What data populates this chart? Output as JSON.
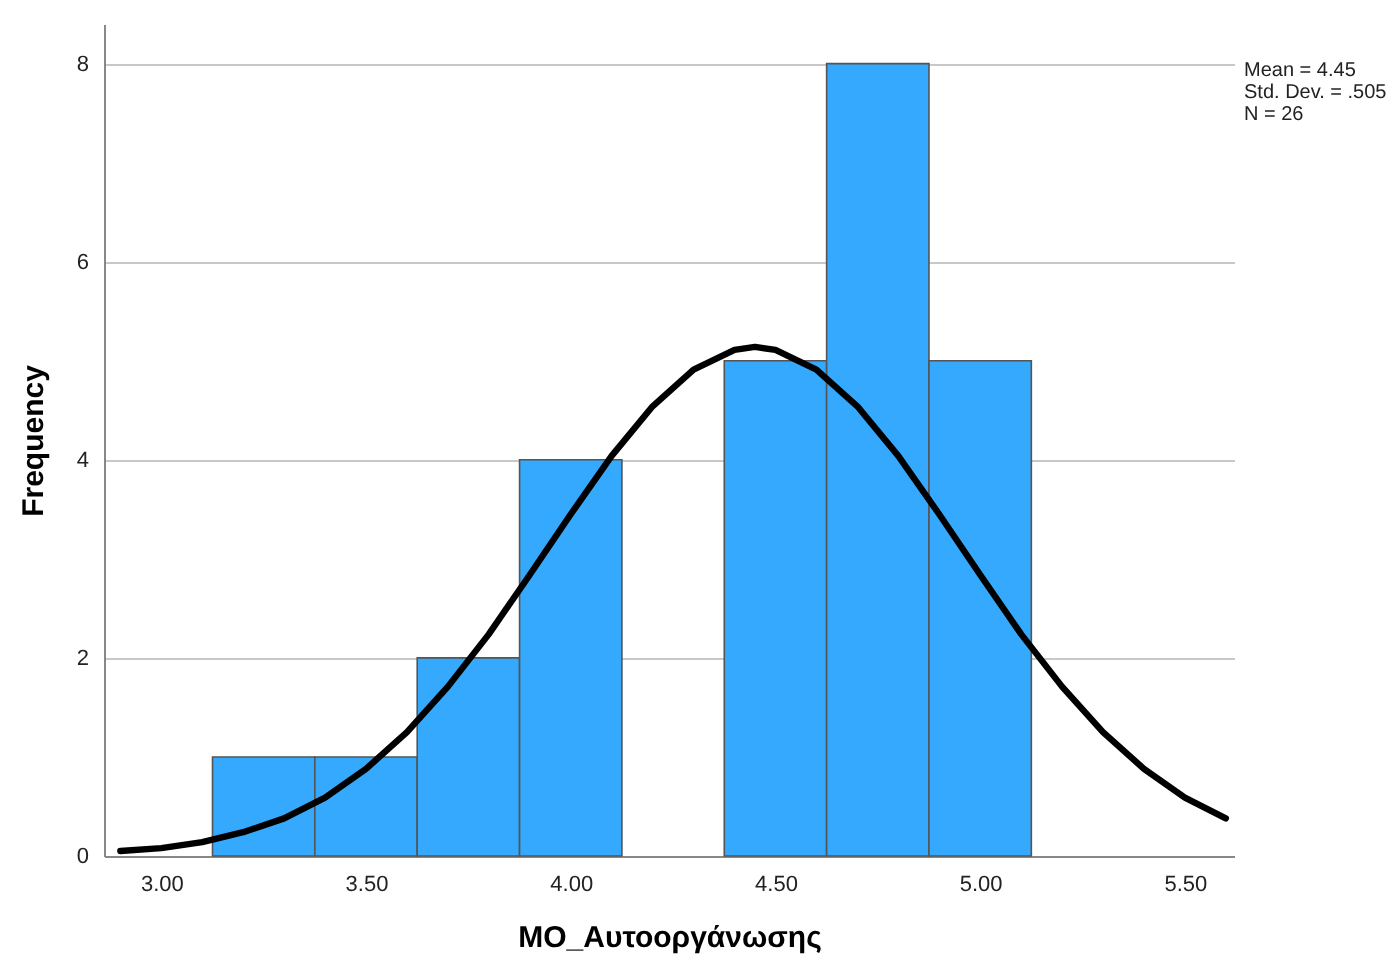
{
  "chart_data": {
    "type": "histogram",
    "xlabel": "ΜΟ_Αυτοοργάνωσης",
    "ylabel": "Frequency",
    "bins": [
      3.125,
      3.375,
      3.625,
      3.875,
      4.125,
      4.375,
      4.625,
      4.875,
      5.125
    ],
    "values": [
      1,
      1,
      2,
      4,
      0,
      5,
      8,
      5
    ],
    "color": "#34a9fd",
    "series": [
      {
        "type": "line",
        "color": "#000000",
        "x": [
          2.9,
          3.0,
          3.1,
          3.2,
          3.3,
          3.4,
          3.5,
          3.6,
          3.7,
          3.8,
          3.9,
          4.0,
          4.1,
          4.2,
          4.3,
          4.4,
          4.45,
          4.5,
          4.6,
          4.7,
          4.8,
          4.9,
          5.0,
          5.1,
          5.2,
          5.3,
          5.4,
          5.5,
          5.6
        ],
        "values": [
          0.05,
          0.08,
          0.14,
          0.24,
          0.38,
          0.59,
          0.88,
          1.25,
          1.71,
          2.24,
          2.84,
          3.45,
          4.04,
          4.54,
          4.91,
          5.11,
          5.14,
          5.11,
          4.91,
          4.54,
          4.04,
          3.45,
          2.84,
          2.24,
          1.71,
          1.25,
          0.88,
          0.59,
          0.38
        ]
      }
    ],
    "xlim": [
      2.86,
      5.62
    ],
    "xticks": [
      {
        "value": 3,
        "label": "3.00"
      },
      {
        "value": 3.5,
        "label": "3.50"
      },
      {
        "value": 4,
        "label": "4.00"
      },
      {
        "value": 4.5,
        "label": "4.50"
      },
      {
        "value": 5,
        "label": "5.00"
      },
      {
        "value": 5.5,
        "label": "5.50"
      }
    ],
    "ylim": [
      0,
      8.4
    ],
    "yticks": [
      0,
      2,
      4,
      6,
      8
    ],
    "grid": "y",
    "annotations": [
      "Mean = 4.45",
      "Std. Dev. = .505",
      "N = 26"
    ]
  }
}
